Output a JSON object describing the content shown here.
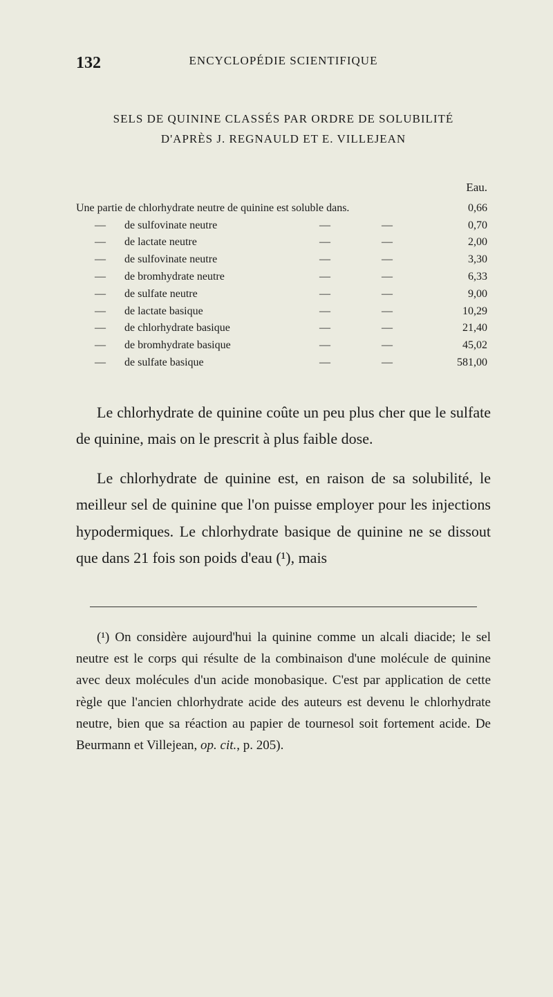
{
  "page_number": "132",
  "running_header": "ENCYCLOPÉDIE SCIENTIFIQUE",
  "title_line1": "SELS DE QUININE CLASSÉS PAR ORDRE DE SOLUBILITÉ",
  "title_line2": "D'APRÈS J. REGNAULD ET E. VILLEJEAN",
  "eau_label": "Eau.",
  "first_row_text": "Une partie de chlorhydrate neutre de quinine est soluble dans.",
  "first_row_value": "0,66",
  "rows": [
    {
      "dash": "—",
      "label": "de sulfovinate neutre",
      "d1": "—",
      "d2": "—",
      "value": "0,70"
    },
    {
      "dash": "—",
      "label": "de lactate neutre",
      "d1": "—",
      "d2": "—",
      "value": "2,00"
    },
    {
      "dash": "—",
      "label": "de sulfovinate neutre",
      "d1": "—",
      "d2": "—",
      "value": "3,30"
    },
    {
      "dash": "—",
      "label": "de bromhydrate neutre",
      "d1": "—",
      "d2": "—",
      "value": "6,33"
    },
    {
      "dash": "—",
      "label": "de sulfate neutre",
      "d1": "—",
      "d2": "—",
      "value": "9,00"
    },
    {
      "dash": "—",
      "label": "de lactate basique",
      "d1": "—",
      "d2": "—",
      "value": "10,29"
    },
    {
      "dash": "—",
      "label": "de chlorhydrate basique",
      "d1": "—",
      "d2": "—",
      "value": "21,40"
    },
    {
      "dash": "—",
      "label": "de bromhydrate basique",
      "d1": "—",
      "d2": "—",
      "value": "45,02"
    },
    {
      "dash": "—",
      "label": "de sulfate basique",
      "d1": "—",
      "d2": "—",
      "value": "581,00"
    }
  ],
  "paragraph1": "Le chlorhydrate de quinine coûte un peu plus cher que le sulfate de quinine, mais on le pres­crit à plus faible dose.",
  "paragraph2": "Le chlorhydrate de quinine est, en raison de sa solubilité, le meilleur sel de quinine que l'on puisse employer pour les injections hypodermi­ques. Le chlorhydrate basique de quinine ne se dissout que dans 21 fois son poids d'eau (¹), mais",
  "footnote": "(¹) On considère aujourd'hui la quinine comme un alcali diacide; le sel neutre est le corps qui résulte de la combinaison d'une molécule de quinine avec deux molécules d'un acide monobasique. C'est par applica­tion de cette règle que l'ancien chlorhydrate acide des auteurs est devenu le chlorhydrate neutre, bien que sa réaction au papier de tournesol soit fortement acide. De Beurmann et Villejean, ",
  "footnote_citation": "op. cit.",
  "footnote_end": ", p. 205)."
}
